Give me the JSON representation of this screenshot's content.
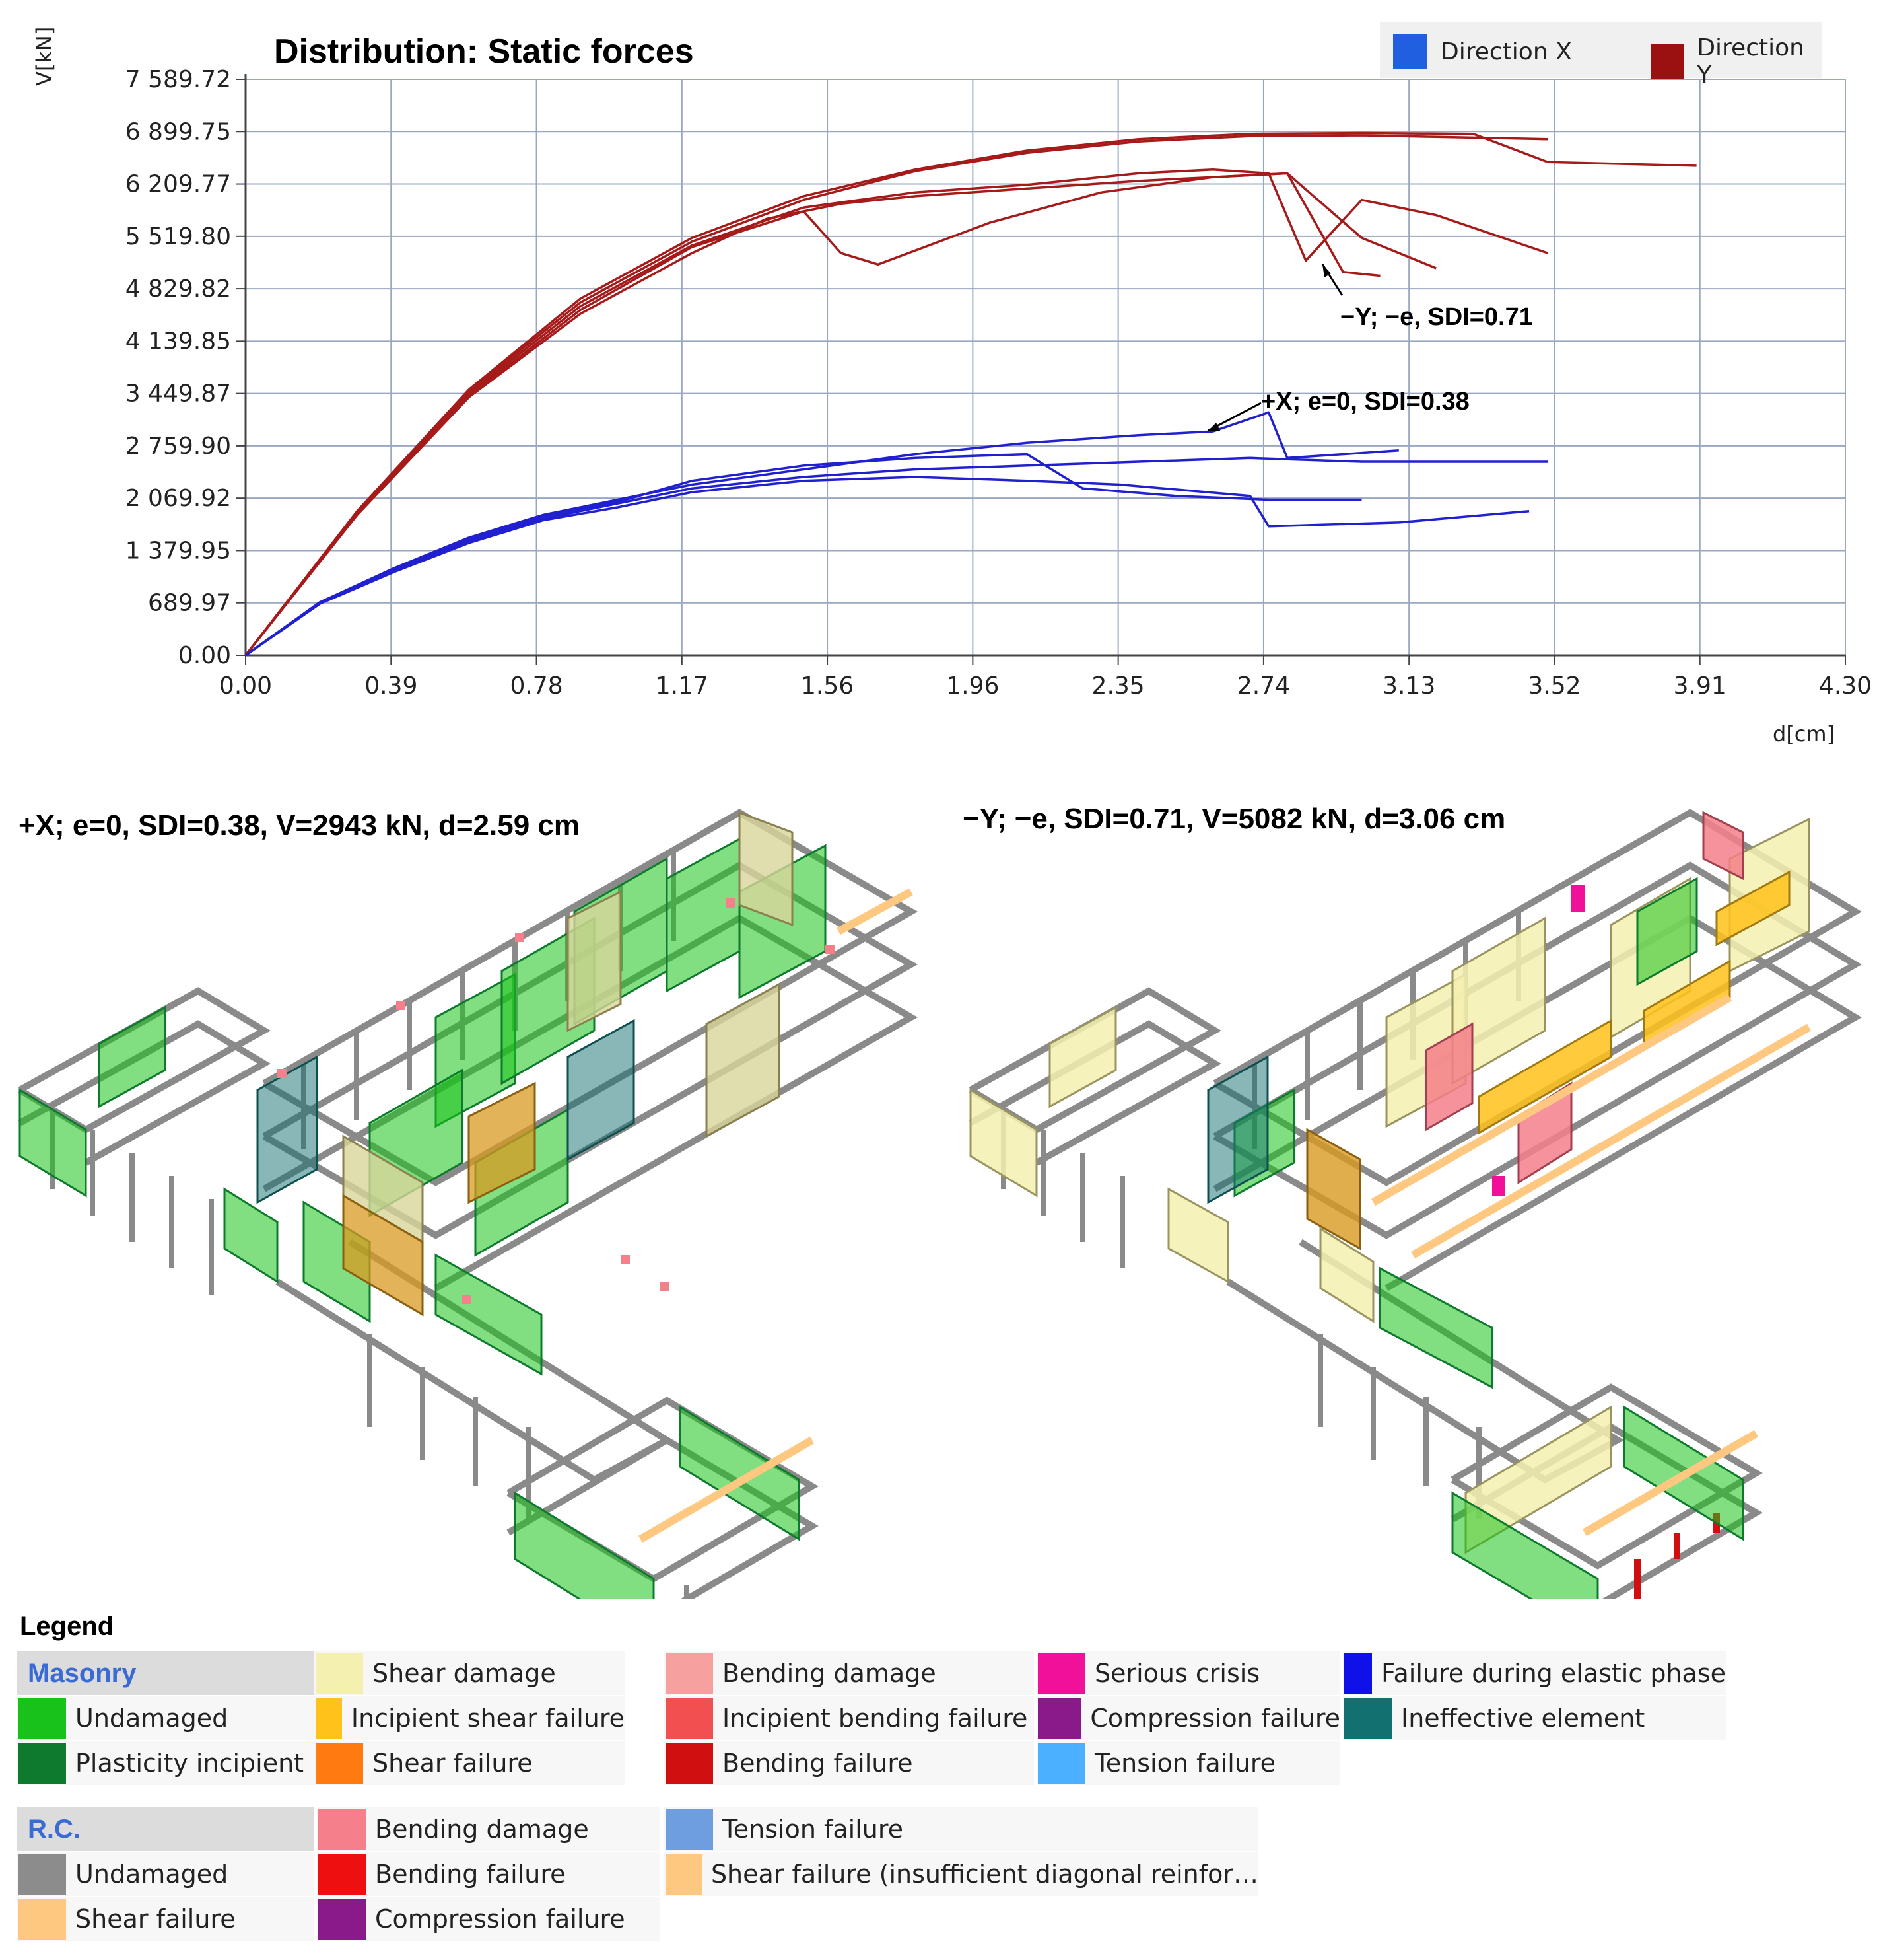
{
  "chart_data": {
    "type": "line",
    "title": "Distribution: Static forces",
    "ylabel": "V[kN]",
    "xlabel": "d[cm]",
    "xlim": [
      0,
      4.3
    ],
    "ylim": [
      0,
      7589.72
    ],
    "x_ticks": [
      "0.00",
      "0.39",
      "0.78",
      "1.17",
      "1.56",
      "1.96",
      "2.35",
      "2.74",
      "3.13",
      "3.52",
      "3.91",
      "4.30"
    ],
    "y_ticks": [
      "0.00",
      "689.97",
      "1 379.95",
      "2 069.92",
      "2 759.90",
      "3 449.87",
      "4 139.85",
      "4 829.82",
      "5 519.80",
      "6 209.77",
      "6 899.75",
      "7 589.72"
    ],
    "grid": true,
    "legend_position": "top-right",
    "series": [
      {
        "name": "Direction Y",
        "color": "#a61a1a",
        "x": [
          0,
          0.3,
          0.6,
          0.9,
          1.2,
          1.5,
          1.8,
          2.1,
          2.4,
          2.7,
          3.0,
          3.3,
          3.5,
          3.9
        ],
        "y": [
          0,
          1900,
          3500,
          4700,
          5500,
          6050,
          6400,
          6650,
          6800,
          6870,
          6880,
          6870,
          6500,
          6450
        ]
      },
      {
        "name": "Direction Y",
        "color": "#a61a1a",
        "x": [
          0,
          0.3,
          0.6,
          0.9,
          1.2,
          1.5,
          1.8,
          2.1,
          2.4,
          2.7,
          3.0,
          3.2,
          3.5
        ],
        "y": [
          0,
          1880,
          3480,
          4650,
          5450,
          6000,
          6380,
          6620,
          6770,
          6840,
          6850,
          6830,
          6800
        ]
      },
      {
        "name": "Direction Y",
        "color": "#a61a1a",
        "x": [
          0,
          0.3,
          0.6,
          0.9,
          1.2,
          1.4,
          1.6,
          1.8,
          2.1,
          2.4,
          2.6,
          2.8,
          3.0,
          3.2
        ],
        "y": [
          0,
          1850,
          3400,
          4500,
          5300,
          5750,
          5950,
          6050,
          6150,
          6250,
          6300,
          6350,
          5500,
          5100
        ]
      },
      {
        "name": "Direction Y",
        "color": "#a61a1a",
        "x": [
          0,
          0.3,
          0.6,
          0.9,
          1.2,
          1.5,
          1.6,
          1.7,
          2.0,
          2.3,
          2.6,
          2.8,
          2.95,
          3.05
        ],
        "y": [
          0,
          1860,
          3420,
          4550,
          5380,
          5850,
          5300,
          5150,
          5700,
          6100,
          6300,
          6350,
          5050,
          5000
        ]
      },
      {
        "name": "Direction Y",
        "color": "#a61a1a",
        "x": [
          0,
          0.3,
          0.6,
          0.9,
          1.2,
          1.5,
          1.8,
          2.1,
          2.4,
          2.6,
          2.75,
          2.85,
          3.0,
          3.2,
          3.5
        ],
        "y": [
          0,
          1870,
          3450,
          4600,
          5400,
          5900,
          6100,
          6200,
          6350,
          6400,
          6350,
          5200,
          6000,
          5800,
          5300
        ]
      },
      {
        "name": "Direction X",
        "color": "#2020d0",
        "x": [
          0,
          0.2,
          0.4,
          0.6,
          0.8,
          1.0,
          1.2,
          1.5,
          1.8,
          2.1,
          2.4,
          2.6,
          2.75,
          2.8,
          3.1
        ],
        "y": [
          0,
          700,
          1150,
          1550,
          1850,
          2050,
          2250,
          2450,
          2650,
          2800,
          2900,
          2950,
          3200,
          2600,
          2700
        ]
      },
      {
        "name": "Direction X",
        "color": "#2020d0",
        "x": [
          0,
          0.2,
          0.4,
          0.6,
          0.8,
          1.0,
          1.2,
          1.5,
          1.8,
          2.1,
          2.4,
          2.7,
          3.0,
          3.5
        ],
        "y": [
          0,
          690,
          1120,
          1500,
          1800,
          2000,
          2200,
          2350,
          2450,
          2500,
          2550,
          2600,
          2550,
          2550
        ]
      },
      {
        "name": "Direction X",
        "color": "#2020d0",
        "x": [
          0,
          0.2,
          0.4,
          0.6,
          0.8,
          1.0,
          1.2,
          1.5,
          1.8,
          2.1,
          2.35,
          2.7,
          2.75,
          3.1,
          3.45
        ],
        "y": [
          0,
          680,
          1100,
          1480,
          1780,
          1950,
          2150,
          2300,
          2350,
          2300,
          2250,
          2100,
          1700,
          1750,
          1900
        ]
      },
      {
        "name": "Direction X",
        "color": "#2020d0",
        "x": [
          0,
          0.2,
          0.4,
          0.6,
          0.8,
          1.0,
          1.2,
          1.5,
          1.8,
          2.1,
          2.25,
          2.5,
          2.75,
          3.0
        ],
        "y": [
          0,
          700,
          1130,
          1520,
          1830,
          2020,
          2300,
          2500,
          2600,
          2650,
          2200,
          2100,
          2050,
          2050
        ]
      }
    ],
    "annotations": [
      {
        "text": "−Y; −e, SDI=0.71",
        "x": 3.0,
        "y": 4550
      },
      {
        "text": "+X; e=0, SDI=0.38",
        "x": 2.74,
        "y": 3320
      }
    ]
  },
  "legend": {
    "items": [
      {
        "label": "Direction X",
        "color": "#1f5fe0"
      },
      {
        "label": "Direction Y",
        "color": "#9b1010"
      }
    ]
  },
  "panels": {
    "left_caption": "+X; e=0, SDI=0.38, V=2943 kN, d=2.59 cm",
    "right_caption": "−Y; −e, SDI=0.71, V=5082 kN, d=3.06 cm"
  },
  "damage_legend": {
    "title": "Legend",
    "masonry_header": "Masonry",
    "rc_header": "R.C.",
    "masonry": [
      {
        "label": "Undamaged",
        "color": "#19c21a"
      },
      {
        "label": "Plasticity incipient",
        "color": "#0e7a2e"
      },
      {
        "label": "Shear damage",
        "color": "#f4f0b0"
      },
      {
        "label": "Incipient shear failure",
        "color": "#ffc21a"
      },
      {
        "label": "Shear failure",
        "color": "#ff7a10"
      },
      {
        "label": "Bending damage",
        "color": "#f7a0a0"
      },
      {
        "label": "Incipient bending failure",
        "color": "#f25050"
      },
      {
        "label": "Bending failure",
        "color": "#d01010"
      },
      {
        "label": "Serious crisis",
        "color": "#f0109a"
      },
      {
        "label": "Compression failure",
        "color": "#8a1a8a"
      },
      {
        "label": "Tension failure",
        "color": "#4ab0ff"
      },
      {
        "label": "Failure during elastic phase",
        "color": "#1010e8"
      },
      {
        "label": "Ineffective element",
        "color": "#137070"
      }
    ],
    "rc": [
      {
        "label": "Undamaged",
        "color": "#8c8c8c"
      },
      {
        "label": "Shear failure",
        "color": "#ffc880"
      },
      {
        "label": "Bending damage",
        "color": "#f57f8a"
      },
      {
        "label": "Bending failure",
        "color": "#ee1010"
      },
      {
        "label": "Compression failure",
        "color": "#8a1a8a"
      },
      {
        "label": "Tension failure",
        "color": "#6e9ee0"
      },
      {
        "label": "Shear failure (insufficient diagonal reinfor…",
        "color": "#ffc880"
      }
    ]
  }
}
